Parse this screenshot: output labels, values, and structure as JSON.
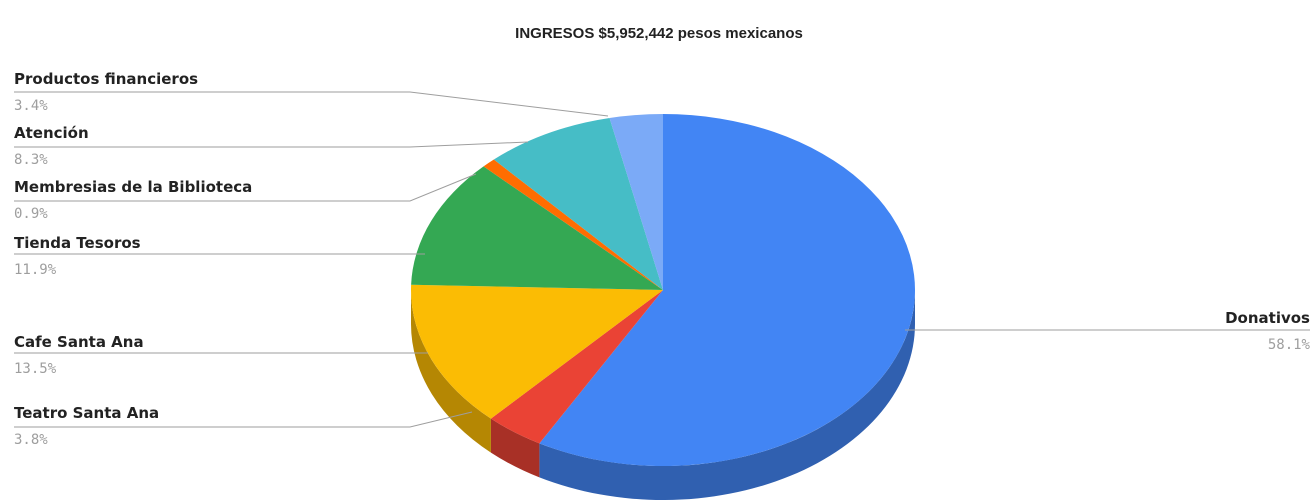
{
  "chart_data": {
    "type": "pie",
    "title": "INGRESOS $5,952,442 pesos mexicanos",
    "slices": [
      {
        "label": "Donativos",
        "value": 58.1,
        "pct_label": "58.1%",
        "color": "#4285f4"
      },
      {
        "label": "Teatro Santa Ana",
        "value": 3.8,
        "pct_label": "3.8%",
        "color": "#ea4335"
      },
      {
        "label": "Cafe Santa Ana",
        "value": 13.5,
        "pct_label": "13.5%",
        "color": "#fbbc04"
      },
      {
        "label": "Tienda Tesoros",
        "value": 11.9,
        "pct_label": "11.9%",
        "color": "#34a853"
      },
      {
        "label": "Membresias de la Biblioteca",
        "value": 0.9,
        "pct_label": "0.9%",
        "color": "#ff6d01"
      },
      {
        "label": "Atención",
        "value": 8.3,
        "pct_label": "8.3%",
        "color": "#46bdc6"
      },
      {
        "label": "Productos financieros",
        "value": 3.4,
        "pct_label": "3.4%",
        "color": "#7baaf7"
      }
    ],
    "style": "3d",
    "legend": "none"
  }
}
